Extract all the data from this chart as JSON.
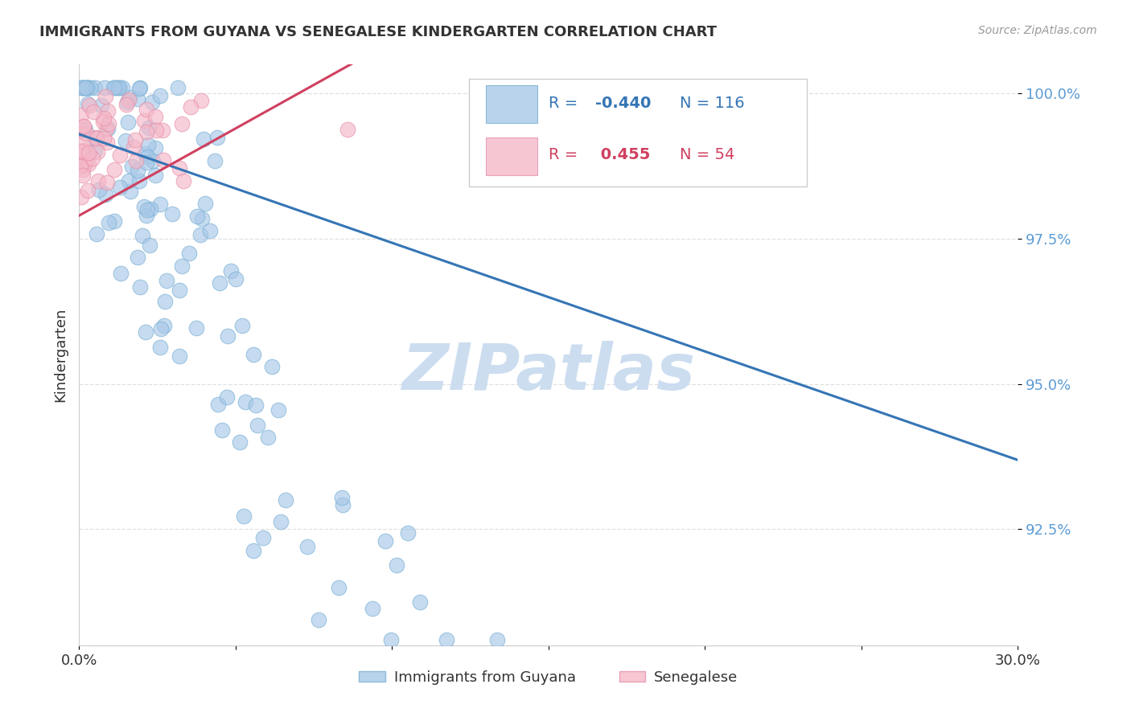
{
  "title": "IMMIGRANTS FROM GUYANA VS SENEGALESE KINDERGARTEN CORRELATION CHART",
  "source": "Source: ZipAtlas.com",
  "ylabel": "Kindergarten",
  "xlim": [
    0.0,
    0.3
  ],
  "ylim": [
    0.905,
    1.005
  ],
  "yticks": [
    0.925,
    0.95,
    0.975,
    1.0
  ],
  "ytick_labels": [
    "92.5%",
    "95.0%",
    "97.5%",
    "100.0%"
  ],
  "xtick_labels": [
    "0.0%",
    "30.0%"
  ],
  "blue_color": "#a8c8e8",
  "blue_edge_color": "#7ab0d4",
  "pink_color": "#f4b8c8",
  "pink_edge_color": "#e890a8",
  "blue_line_color": "#3575b5",
  "pink_line_color": "#d04060",
  "watermark": "ZIPatlas",
  "watermark_color": "#ccddf0",
  "grid_color": "#dddddd",
  "tick_color": "#5b9bd5",
  "text_color": "#333333",
  "source_color": "#999999",
  "legend_r1_color": "#3575b5",
  "legend_r2_color": "#d04060"
}
